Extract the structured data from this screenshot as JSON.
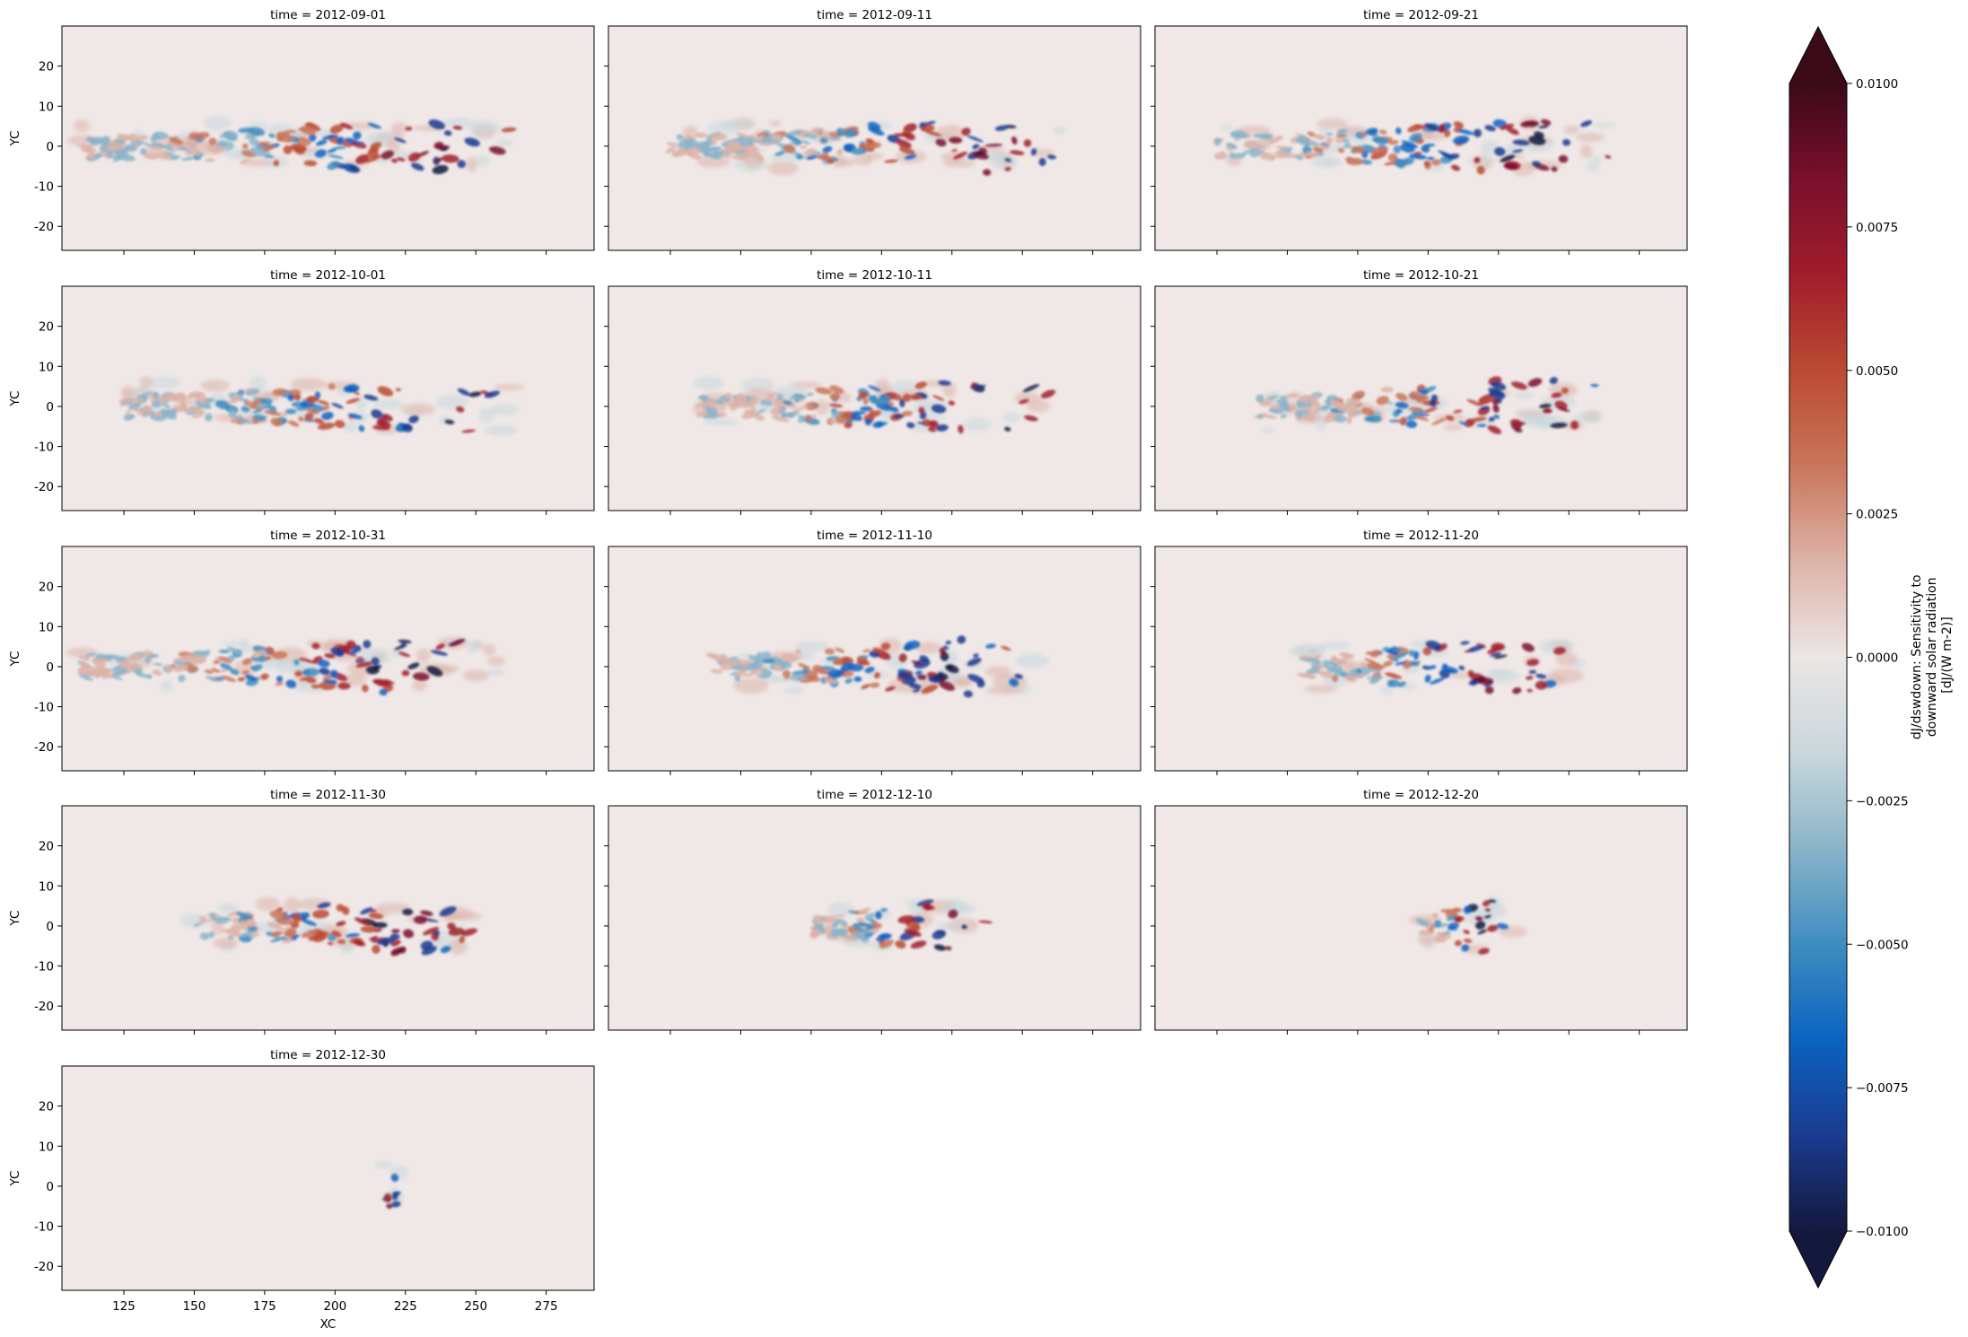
{
  "chart_data": {
    "type": "heatmap",
    "facet_by": "time",
    "panel_titles": [
      "time = 2012-09-01",
      "time = 2012-09-11",
      "time = 2012-09-21",
      "time = 2012-10-01",
      "time = 2012-10-11",
      "time = 2012-10-21",
      "time = 2012-10-31",
      "time = 2012-11-10",
      "time = 2012-11-20",
      "time = 2012-11-30",
      "time = 2012-12-10",
      "time = 2012-12-20",
      "time = 2012-12-30"
    ],
    "layout": {
      "cols": 3,
      "rows": 5
    },
    "xlabel": "XC",
    "ylabel": "YC",
    "xlim": [
      103,
      292
    ],
    "ylim": [
      -26,
      30
    ],
    "xticks": [
      125,
      150,
      175,
      200,
      225,
      250,
      275
    ],
    "yticks": [
      20,
      10,
      0,
      -10,
      -20
    ],
    "colorbar": {
      "label_lines": [
        "dJ/dswdown: Sensitivity to",
        "downward solar radiation",
        "[dJ/(W m-2)]"
      ],
      "vmin": -0.01,
      "vmax": 0.01,
      "extend": "both",
      "ticks": [
        "0.0100",
        "0.0075",
        "0.0050",
        "0.0025",
        "0.0000",
        "−0.0025",
        "−0.0050",
        "−0.0075",
        "−0.0100"
      ],
      "colormap_stops": [
        "#13183d",
        "#1a3b8f",
        "#0b63c1",
        "#3e8dc0",
        "#8ab4c9",
        "#c9d7dc",
        "#ece6e5",
        "#ddb3a7",
        "#c9765a",
        "#bb4a33",
        "#a11d2b",
        "#7a0f2d",
        "#3b0a17"
      ]
    },
    "panels_summary": [
      {
        "time": "2012-09-01",
        "x_extent": [
          110,
          265
        ],
        "core_lon": 240
      },
      {
        "time": "2012-09-11",
        "x_extent": [
          125,
          265
        ],
        "core_lon": 240
      },
      {
        "time": "2012-09-21",
        "x_extent": [
          125,
          265
        ],
        "core_lon": 240
      },
      {
        "time": "2012-10-01",
        "x_extent": [
          125,
          262
        ],
        "core_lon": 238
      },
      {
        "time": "2012-10-11",
        "x_extent": [
          135,
          262
        ],
        "core_lon": 238
      },
      {
        "time": "2012-10-21",
        "x_extent": [
          140,
          262
        ],
        "core_lon": 235
      },
      {
        "time": "2012-10-31",
        "x_extent": [
          110,
          258
        ],
        "core_lon": 232
      },
      {
        "time": "2012-11-10",
        "x_extent": [
          140,
          255
        ],
        "core_lon": 228
      },
      {
        "time": "2012-11-20",
        "x_extent": [
          155,
          255
        ],
        "core_lon": 228
      },
      {
        "time": "2012-11-30",
        "x_extent": [
          150,
          250
        ],
        "core_lon": 225
      },
      {
        "time": "2012-12-10",
        "x_extent": [
          175,
          240
        ],
        "core_lon": 225
      },
      {
        "time": "2012-12-20",
        "x_extent": [
          198,
          232
        ],
        "core_lon": 220
      },
      {
        "time": "2012-12-30",
        "x_extent": [
          217,
          223
        ],
        "core_lon": 220
      }
    ]
  }
}
